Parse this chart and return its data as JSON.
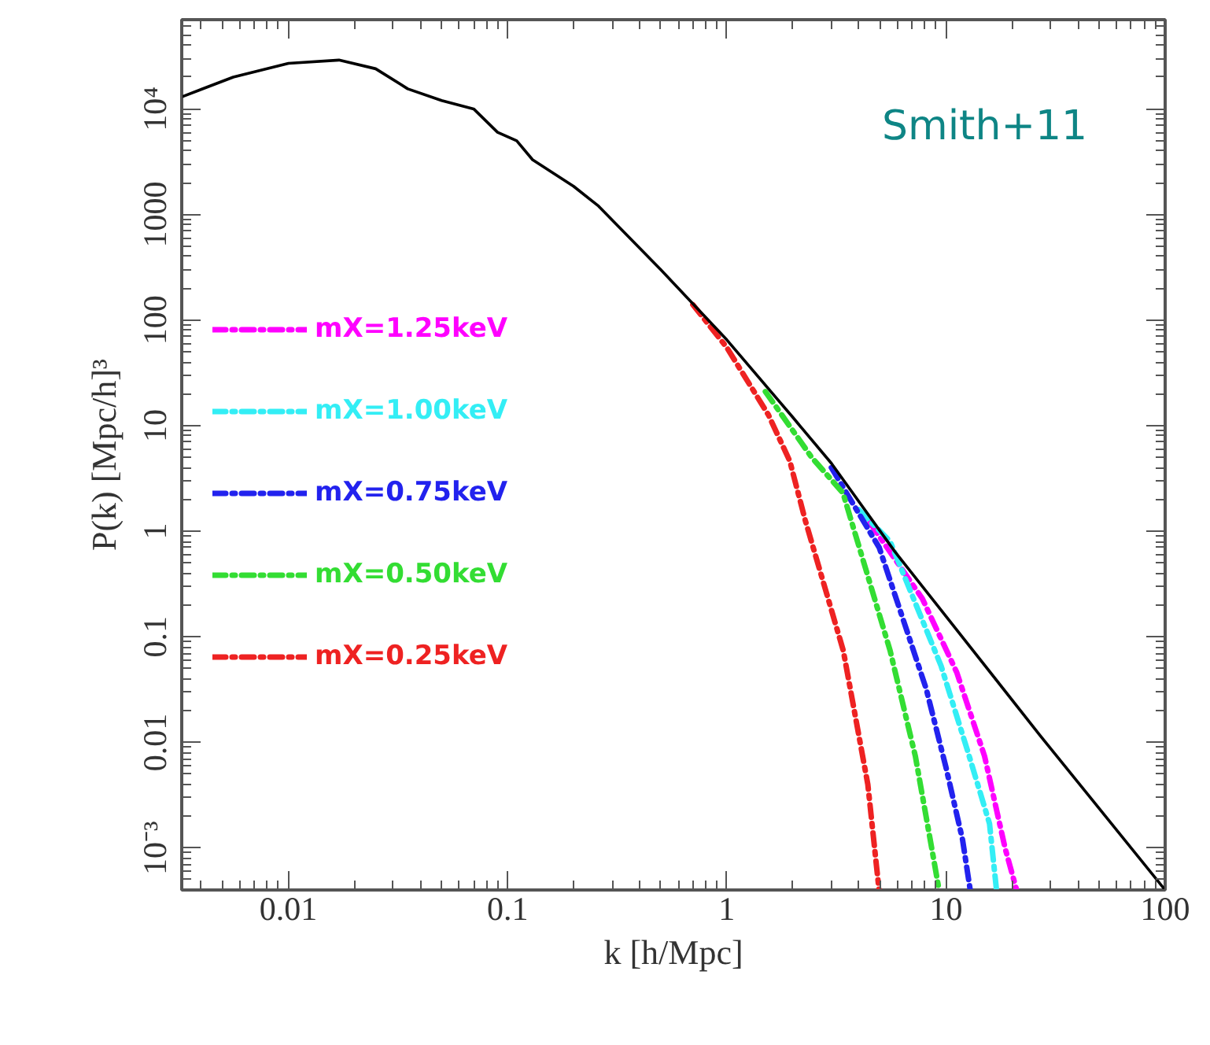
{
  "chart_data": {
    "type": "line",
    "xlabel": "k [h/Mpc]",
    "ylabel": "P(k) [Mpc/h]³",
    "log": "xy",
    "grid": false,
    "legend": "left",
    "line_style": "solid",
    "xlim": [
      0.00326,
      100
    ],
    "ylim": [
      0.0004,
      70000
    ],
    "xticks": [
      0.01,
      0.1,
      1,
      10,
      100
    ],
    "yticks": [
      {
        "value": 0.001,
        "label": "10⁻³"
      },
      0.01,
      0.1,
      1,
      10,
      100,
      1000,
      {
        "value": 10000,
        "label": "10⁴"
      }
    ],
    "annotations": [
      "Smith+11"
    ],
    "series": [
      {
        "name": "mX=1.25keV",
        "color": "#ff00ff",
        "line_style": "dashed",
        "x": [
          4.5,
          7.8,
          11.2,
          15,
          18.6,
          21
        ],
        "values": [
          1.2,
          0.23,
          0.046,
          0.0074,
          0.001,
          0.0004
        ]
      },
      {
        "name": "mX=1.00keV",
        "color": "#33eef5",
        "line_style": "dashed",
        "x": [
          4,
          5.56,
          9.5,
          12.6,
          15.8,
          17
        ],
        "values": [
          1.6,
          0.8,
          0.053,
          0.0081,
          0.0017,
          0.0004
        ]
      },
      {
        "name": "mX=0.75keV",
        "color": "#2222ee",
        "line_style": "dashed",
        "x": [
          3,
          4.96,
          8.13,
          10,
          11.9,
          12.9
        ],
        "values": [
          4.0,
          0.7,
          0.032,
          0.0058,
          0.0012,
          0.0004
        ]
      },
      {
        "name": "mX=0.50keV",
        "color": "#33dd33",
        "line_style": "dashed",
        "x": [
          1.5,
          2.44,
          3.39,
          5.56,
          7.25,
          8.83,
          9.3
        ],
        "values": [
          21,
          5.0,
          2.3,
          0.074,
          0.0074,
          0.00074,
          0.0004
        ]
      },
      {
        "name": "mX=0.25keV",
        "color": "#ee2222",
        "line_style": "dashed",
        "x": [
          0.7,
          1,
          1.55,
          1.94,
          2.28,
          3.4,
          4.4,
          4.95
        ],
        "values": [
          140,
          55,
          12.6,
          4.6,
          1.27,
          0.074,
          0.004,
          0.0004
        ]
      },
      {
        "color": "#000000",
        "x": [
          0.00326,
          0.0056,
          0.01,
          0.017,
          0.025,
          0.035,
          0.05,
          0.07,
          0.09,
          0.11,
          0.13,
          0.2,
          0.26,
          0.5,
          1,
          2,
          3,
          5.85,
          27,
          100
        ],
        "values": [
          13000,
          20000,
          27000,
          29000,
          24000,
          15500,
          12000,
          10000,
          6000,
          5000,
          3300,
          1850,
          1200,
          300,
          65,
          12,
          4.4,
          0.64,
          0.0115,
          0.0004
        ]
      }
    ]
  }
}
